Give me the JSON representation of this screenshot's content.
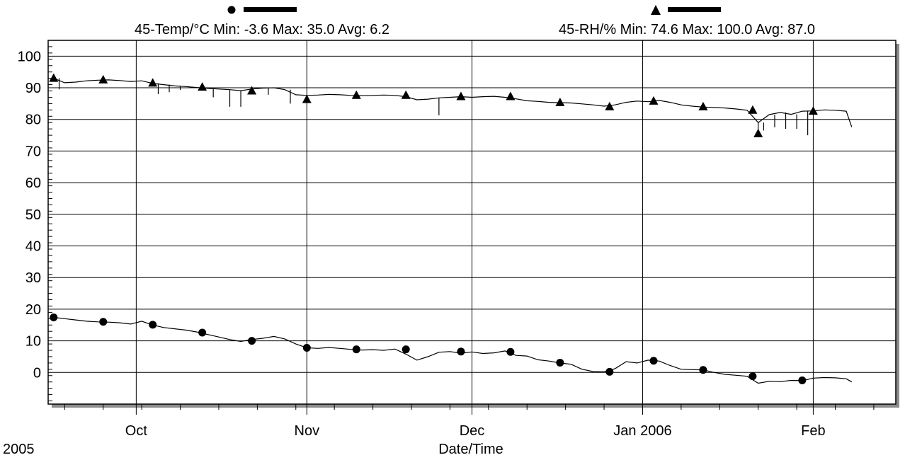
{
  "chart_data": {
    "type": "line",
    "xlabel": "Date/Time",
    "year_label": "2005",
    "x_tick_labels": [
      {
        "date": "2005-10-01",
        "label": "Oct"
      },
      {
        "date": "2005-11-01",
        "label": "Nov"
      },
      {
        "date": "2005-12-01",
        "label": "Dec"
      },
      {
        "date": "2006-01-01",
        "label": "Jan 2006"
      },
      {
        "date": "2006-02-01",
        "label": "Feb"
      }
    ],
    "xlim": [
      "2005-09-15",
      "2006-02-16"
    ],
    "ylim": [
      -10,
      105
    ],
    "y_ticks": [
      0,
      10,
      20,
      30,
      40,
      50,
      60,
      70,
      80,
      90,
      100
    ],
    "grid": true,
    "series": [
      {
        "name": "45-Temp/°C",
        "legend_text": "45-Temp/°C Min: -3.6 Max: 35.0 Avg: 6.2",
        "marker": "circle",
        "color": "#000000",
        "points": [
          [
            "2005-09-16",
            17.4
          ],
          [
            "2005-09-18",
            17.0
          ],
          [
            "2005-09-20",
            16.6
          ],
          [
            "2005-09-22",
            16.2
          ],
          [
            "2005-09-24",
            16.0
          ],
          [
            "2005-09-26",
            15.9
          ],
          [
            "2005-09-28",
            15.7
          ],
          [
            "2005-09-30",
            15.3
          ],
          [
            "2005-10-02",
            16.2
          ],
          [
            "2005-10-04",
            15.0
          ],
          [
            "2005-10-06",
            14.2
          ],
          [
            "2005-10-08",
            13.8
          ],
          [
            "2005-10-10",
            13.4
          ],
          [
            "2005-10-12",
            12.8
          ],
          [
            "2005-10-14",
            12.0
          ],
          [
            "2005-10-16",
            11.2
          ],
          [
            "2005-10-18",
            10.4
          ],
          [
            "2005-10-20",
            9.8
          ],
          [
            "2005-10-22",
            10.4
          ],
          [
            "2005-10-24",
            10.8
          ],
          [
            "2005-10-26",
            11.4
          ],
          [
            "2005-10-28",
            10.6
          ],
          [
            "2005-10-30",
            9.0
          ],
          [
            "2005-11-01",
            7.8
          ],
          [
            "2005-11-03",
            7.6
          ],
          [
            "2005-11-05",
            7.9
          ],
          [
            "2005-11-07",
            7.6
          ],
          [
            "2005-11-09",
            7.3
          ],
          [
            "2005-11-11",
            7.1
          ],
          [
            "2005-11-13",
            7.2
          ],
          [
            "2005-11-15",
            7.0
          ],
          [
            "2005-11-17",
            7.4
          ],
          [
            "2005-11-19",
            5.8
          ],
          [
            "2005-11-21",
            3.9
          ],
          [
            "2005-11-23",
            5.0
          ],
          [
            "2005-11-25",
            6.4
          ],
          [
            "2005-11-27",
            6.6
          ],
          [
            "2005-11-29",
            6.1
          ],
          [
            "2005-12-01",
            6.5
          ],
          [
            "2005-12-03",
            6.0
          ],
          [
            "2005-12-05",
            6.2
          ],
          [
            "2005-12-07",
            6.8
          ],
          [
            "2005-12-09",
            5.4
          ],
          [
            "2005-12-11",
            5.2
          ],
          [
            "2005-12-13",
            4.0
          ],
          [
            "2005-12-15",
            3.6
          ],
          [
            "2005-12-17",
            3.0
          ],
          [
            "2005-12-19",
            2.6
          ],
          [
            "2005-12-21",
            1.0
          ],
          [
            "2005-12-23",
            0.3
          ],
          [
            "2005-12-25",
            0.2
          ],
          [
            "2005-12-27",
            1.2
          ],
          [
            "2005-12-29",
            3.4
          ],
          [
            "2005-12-31",
            3.0
          ],
          [
            "2006-01-02",
            3.9
          ],
          [
            "2006-01-04",
            3.6
          ],
          [
            "2006-01-06",
            2.2
          ],
          [
            "2006-01-08",
            1.0
          ],
          [
            "2006-01-10",
            0.9
          ],
          [
            "2006-01-12",
            0.8
          ],
          [
            "2006-01-14",
            0.0
          ],
          [
            "2006-01-16",
            -0.6
          ],
          [
            "2006-01-18",
            -0.9
          ],
          [
            "2006-01-20",
            -1.2
          ],
          [
            "2006-01-22",
            -3.4
          ],
          [
            "2006-01-24",
            -2.8
          ],
          [
            "2006-01-26",
            -2.9
          ],
          [
            "2006-01-28",
            -2.5
          ],
          [
            "2006-01-30",
            -2.6
          ],
          [
            "2006-02-01",
            -1.8
          ],
          [
            "2006-02-03",
            -1.6
          ],
          [
            "2006-02-05",
            -1.7
          ],
          [
            "2006-02-07",
            -2.0
          ],
          [
            "2006-02-08",
            -3.0
          ]
        ],
        "marker_points": [
          [
            "2005-09-16",
            17.4
          ],
          [
            "2005-09-25",
            16.0
          ],
          [
            "2005-10-04",
            15.1
          ],
          [
            "2005-10-13",
            12.6
          ],
          [
            "2005-10-22",
            10.0
          ],
          [
            "2005-11-01",
            7.8
          ],
          [
            "2005-11-10",
            7.3
          ],
          [
            "2005-11-19",
            7.3
          ],
          [
            "2005-11-29",
            6.6
          ],
          [
            "2005-12-08",
            6.5
          ],
          [
            "2005-12-17",
            3.1
          ],
          [
            "2005-12-26",
            0.2
          ],
          [
            "2006-01-03",
            3.7
          ],
          [
            "2006-01-12",
            0.8
          ],
          [
            "2006-01-21",
            -1.2
          ],
          [
            "2006-01-30",
            -2.5
          ]
        ]
      },
      {
        "name": "45-RH/%",
        "legend_text": "45-RH/% Min: 74.6 Max: 100.0 Avg: 87.0",
        "marker": "triangle",
        "color": "#000000",
        "points": [
          [
            "2005-09-16",
            93.0
          ],
          [
            "2005-09-18",
            91.6
          ],
          [
            "2005-09-20",
            91.8
          ],
          [
            "2005-09-22",
            92.2
          ],
          [
            "2005-09-24",
            92.4
          ],
          [
            "2005-09-26",
            92.5
          ],
          [
            "2005-09-28",
            92.3
          ],
          [
            "2005-09-30",
            92.0
          ],
          [
            "2005-10-02",
            92.2
          ],
          [
            "2005-10-04",
            91.4
          ],
          [
            "2005-10-06",
            91.0
          ],
          [
            "2005-10-08",
            90.6
          ],
          [
            "2005-10-10",
            90.4
          ],
          [
            "2005-10-12",
            90.1
          ],
          [
            "2005-10-14",
            89.8
          ],
          [
            "2005-10-16",
            89.6
          ],
          [
            "2005-10-18",
            89.4
          ],
          [
            "2005-10-20",
            89.1
          ],
          [
            "2005-10-22",
            89.6
          ],
          [
            "2005-10-24",
            89.9
          ],
          [
            "2005-10-26",
            90.0
          ],
          [
            "2005-10-28",
            89.4
          ],
          [
            "2005-10-30",
            87.8
          ],
          [
            "2005-11-01",
            87.6
          ],
          [
            "2005-11-03",
            87.7
          ],
          [
            "2005-11-05",
            87.9
          ],
          [
            "2005-11-07",
            87.8
          ],
          [
            "2005-11-09",
            87.6
          ],
          [
            "2005-11-11",
            87.5
          ],
          [
            "2005-11-13",
            87.6
          ],
          [
            "2005-11-15",
            87.7
          ],
          [
            "2005-11-17",
            87.6
          ],
          [
            "2005-11-19",
            87.2
          ],
          [
            "2005-11-21",
            86.2
          ],
          [
            "2005-11-23",
            86.4
          ],
          [
            "2005-11-25",
            86.8
          ],
          [
            "2005-11-27",
            87.0
          ],
          [
            "2005-11-29",
            87.2
          ],
          [
            "2005-12-01",
            87.0
          ],
          [
            "2005-12-03",
            87.2
          ],
          [
            "2005-12-05",
            87.3
          ],
          [
            "2005-12-07",
            87.0
          ],
          [
            "2005-12-09",
            86.5
          ],
          [
            "2005-12-11",
            85.9
          ],
          [
            "2005-12-13",
            85.7
          ],
          [
            "2005-12-15",
            85.4
          ],
          [
            "2005-12-17",
            85.3
          ],
          [
            "2005-12-19",
            85.2
          ],
          [
            "2005-12-21",
            84.9
          ],
          [
            "2005-12-23",
            84.6
          ],
          [
            "2005-12-25",
            84.2
          ],
          [
            "2005-12-27",
            84.6
          ],
          [
            "2005-12-29",
            85.4
          ],
          [
            "2005-12-31",
            85.8
          ],
          [
            "2006-01-02",
            85.6
          ],
          [
            "2006-01-04",
            86.0
          ],
          [
            "2006-01-06",
            85.4
          ],
          [
            "2006-01-08",
            84.6
          ],
          [
            "2006-01-10",
            84.2
          ],
          [
            "2006-01-12",
            83.9
          ],
          [
            "2006-01-14",
            83.8
          ],
          [
            "2006-01-16",
            83.6
          ],
          [
            "2006-01-18",
            83.3
          ],
          [
            "2006-01-20",
            82.9
          ],
          [
            "2006-01-22",
            79.0
          ],
          [
            "2006-01-24",
            81.5
          ],
          [
            "2006-01-26",
            82.2
          ],
          [
            "2006-01-28",
            81.6
          ],
          [
            "2006-01-30",
            82.6
          ],
          [
            "2006-02-01",
            82.7
          ],
          [
            "2006-02-03",
            83.0
          ],
          [
            "2006-02-05",
            82.9
          ],
          [
            "2006-02-07",
            82.6
          ],
          [
            "2006-02-08",
            77.6
          ]
        ],
        "spikes": [
          [
            "2005-09-17",
            89.5
          ],
          [
            "2005-10-05",
            88.0
          ],
          [
            "2005-10-07",
            88.6
          ],
          [
            "2005-10-09",
            89.3
          ],
          [
            "2005-10-15",
            87.0
          ],
          [
            "2005-10-18",
            84.0
          ],
          [
            "2005-10-20",
            84.0
          ],
          [
            "2005-10-25",
            87.8
          ],
          [
            "2005-10-29",
            85.0
          ],
          [
            "2005-11-01",
            85.8
          ],
          [
            "2005-11-25",
            81.3
          ],
          [
            "2006-01-22",
            75.0
          ],
          [
            "2006-01-23",
            76.5
          ],
          [
            "2006-01-25",
            77.5
          ],
          [
            "2006-01-27",
            77.0
          ],
          [
            "2006-01-29",
            77.0
          ],
          [
            "2006-01-31",
            75.0
          ]
        ],
        "marker_points": [
          [
            "2005-09-16",
            93.0
          ],
          [
            "2005-09-25",
            92.5
          ],
          [
            "2005-10-04",
            91.5
          ],
          [
            "2005-10-13",
            90.2
          ],
          [
            "2005-10-22",
            89.0
          ],
          [
            "2005-11-01",
            86.3
          ],
          [
            "2005-11-10",
            87.6
          ],
          [
            "2005-11-19",
            87.6
          ],
          [
            "2005-11-29",
            87.2
          ],
          [
            "2005-12-08",
            87.2
          ],
          [
            "2005-12-17",
            85.3
          ],
          [
            "2005-12-26",
            84.0
          ],
          [
            "2006-01-03",
            85.8
          ],
          [
            "2006-01-12",
            84.0
          ],
          [
            "2006-01-21",
            82.9
          ],
          [
            "2006-01-22",
            75.5
          ],
          [
            "2006-02-01",
            82.6
          ]
        ]
      }
    ]
  }
}
